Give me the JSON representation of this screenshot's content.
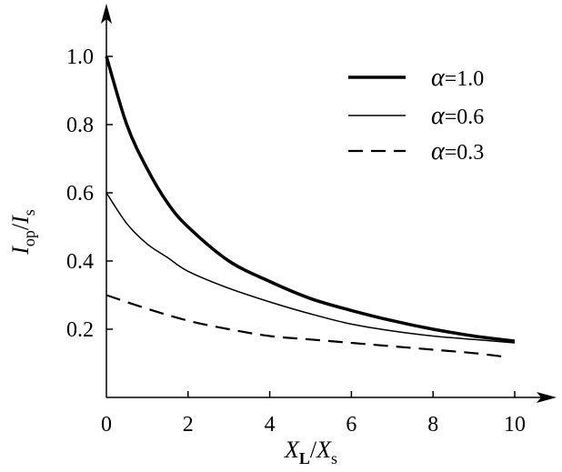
{
  "chart_data": {
    "type": "line",
    "xlabel": {
      "main": "X",
      "sub": "L",
      "sep": "/",
      "main2": "X",
      "sub2": "s"
    },
    "ylabel": {
      "main": "I",
      "sub": "op",
      "sep": "/",
      "main2": "I",
      "sub2": "s"
    },
    "xlim": [
      0,
      10
    ],
    "ylim": [
      0,
      1.0
    ],
    "xticks": [
      0,
      2,
      4,
      6,
      8,
      10
    ],
    "xtick_labels": [
      "0",
      "2",
      "4",
      "6",
      "8",
      "10"
    ],
    "yticks": [
      0.2,
      0.4,
      0.6,
      0.8,
      1.0
    ],
    "ytick_labels": [
      "0.2",
      "0.4",
      "0.6",
      "0.8",
      "1.0"
    ],
    "grid": false,
    "legend_position": "top-right",
    "series": [
      {
        "name": "α=1.0",
        "legend_symbol": "α",
        "legend_value": "=1.0",
        "style": "thick",
        "x": [
          0,
          0.5,
          1,
          1.5,
          2,
          3,
          4,
          5,
          6,
          7,
          8,
          9,
          10
        ],
        "y": [
          1.0,
          0.8,
          0.67,
          0.57,
          0.5,
          0.4,
          0.34,
          0.29,
          0.255,
          0.225,
          0.2,
          0.18,
          0.165
        ]
      },
      {
        "name": "α=0.6",
        "legend_symbol": "α",
        "legend_value": "=0.6",
        "style": "thin",
        "x": [
          0,
          0.5,
          1,
          1.5,
          2,
          3,
          4,
          5,
          6,
          7,
          8,
          9,
          10
        ],
        "y": [
          0.6,
          0.51,
          0.45,
          0.41,
          0.37,
          0.32,
          0.28,
          0.245,
          0.215,
          0.195,
          0.18,
          0.17,
          0.16
        ]
      },
      {
        "name": "α=0.3",
        "legend_symbol": "α",
        "legend_value": "=0.3",
        "style": "dashed",
        "x": [
          0,
          1,
          2,
          3,
          4,
          5,
          6,
          7,
          8,
          9,
          9.7
        ],
        "y": [
          0.3,
          0.26,
          0.225,
          0.2,
          0.18,
          0.17,
          0.16,
          0.15,
          0.14,
          0.13,
          0.12
        ]
      }
    ]
  }
}
